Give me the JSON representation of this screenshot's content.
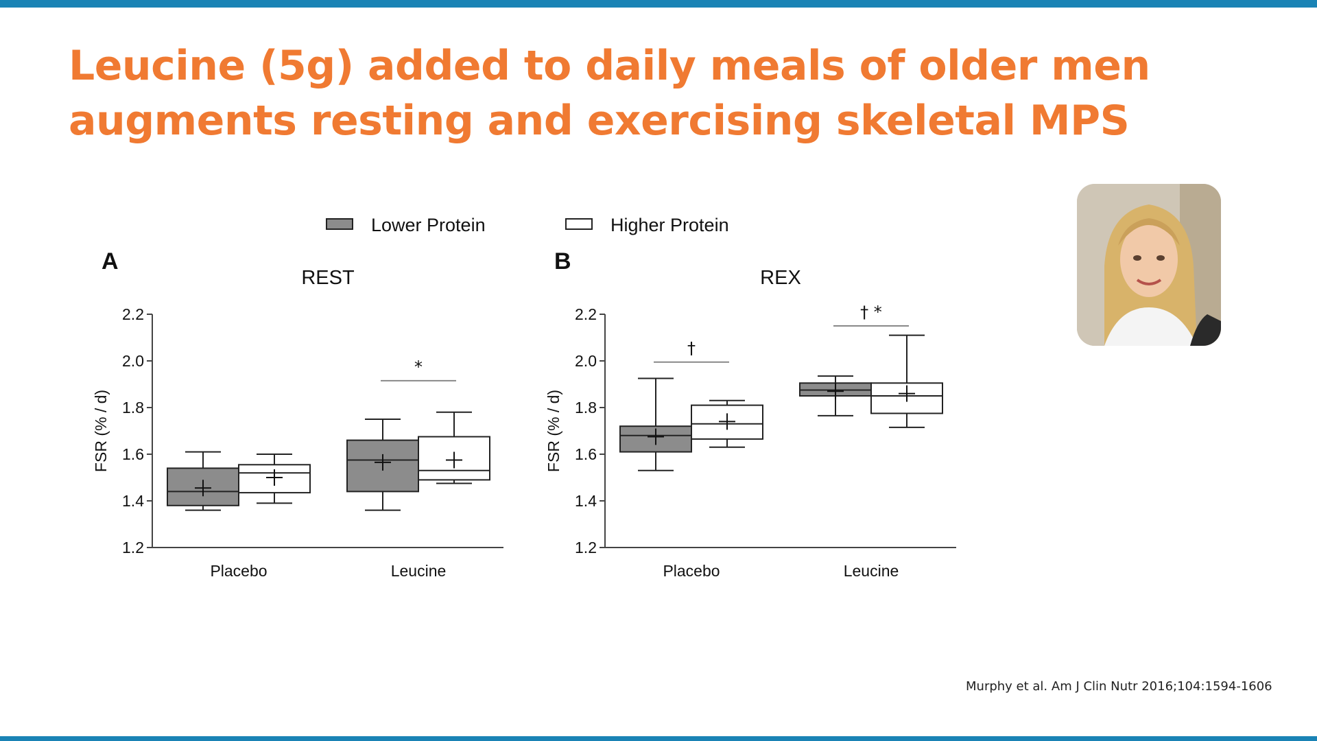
{
  "slide": {
    "title_lines": [
      "Leucine (5g) added to daily meals of older men",
      "augments resting and exercising skeletal MPS"
    ],
    "citation": "Murphy et al. Am J Clin Nutr 2016;104:1594-1606",
    "colors": {
      "title": "#f07a32",
      "bars": "#1a83b5",
      "lower_fill": "#8c8c8c",
      "higher_fill": "#ffffff"
    }
  },
  "legend": {
    "items": [
      {
        "label": "Lower Protein",
        "fill": "#8c8c8c"
      },
      {
        "label": "Higher Protein",
        "fill": "#ffffff"
      }
    ]
  },
  "chart_data": [
    {
      "type": "boxplot",
      "panel_letter": "A",
      "title": "REST",
      "ylabel": "FSR (% / d)",
      "ylim": [
        1.2,
        2.2
      ],
      "yticks": [
        "1.2",
        "1.4",
        "1.6",
        "1.8",
        "2.0",
        "2.2"
      ],
      "categories": [
        "Placebo",
        "Leucine"
      ],
      "series": [
        {
          "name": "Lower Protein",
          "boxes": [
            {
              "min": 1.36,
              "q1": 1.38,
              "median": 1.44,
              "q3": 1.54,
              "max": 1.61,
              "mean": 1.455
            },
            {
              "min": 1.36,
              "q1": 1.44,
              "median": 1.575,
              "q3": 1.66,
              "max": 1.75,
              "mean": 1.565
            }
          ]
        },
        {
          "name": "Higher Protein",
          "boxes": [
            {
              "min": 1.39,
              "q1": 1.435,
              "median": 1.52,
              "q3": 1.555,
              "max": 1.6,
              "mean": 1.5
            },
            {
              "min": 1.475,
              "q1": 1.49,
              "median": 1.53,
              "q3": 1.675,
              "max": 1.78,
              "mean": 1.575
            }
          ]
        }
      ],
      "annotations": [
        {
          "symbol": "*",
          "category": "Leucine",
          "y": 1.915
        }
      ]
    },
    {
      "type": "boxplot",
      "panel_letter": "B",
      "title": "REX",
      "ylabel": "FSR (% / d)",
      "ylim": [
        1.2,
        2.2
      ],
      "yticks": [
        "1.2",
        "1.4",
        "1.6",
        "1.8",
        "2.0",
        "2.2"
      ],
      "categories": [
        "Placebo",
        "Leucine"
      ],
      "series": [
        {
          "name": "Lower Protein",
          "boxes": [
            {
              "min": 1.53,
              "q1": 1.61,
              "median": 1.68,
              "q3": 1.72,
              "max": 1.925,
              "mean": 1.675
            },
            {
              "min": 1.765,
              "q1": 1.85,
              "median": 1.875,
              "q3": 1.905,
              "max": 1.935,
              "mean": 1.87
            }
          ]
        },
        {
          "name": "Higher Protein",
          "boxes": [
            {
              "min": 1.63,
              "q1": 1.665,
              "median": 1.73,
              "q3": 1.81,
              "max": 1.83,
              "mean": 1.74
            },
            {
              "min": 1.715,
              "q1": 1.775,
              "median": 1.85,
              "q3": 1.905,
              "max": 2.11,
              "mean": 1.86
            }
          ]
        }
      ],
      "annotations": [
        {
          "symbol": "†",
          "category": "Placebo",
          "y": 1.995
        },
        {
          "symbol": "† *",
          "category": "Leucine",
          "y": 2.15
        }
      ]
    }
  ]
}
